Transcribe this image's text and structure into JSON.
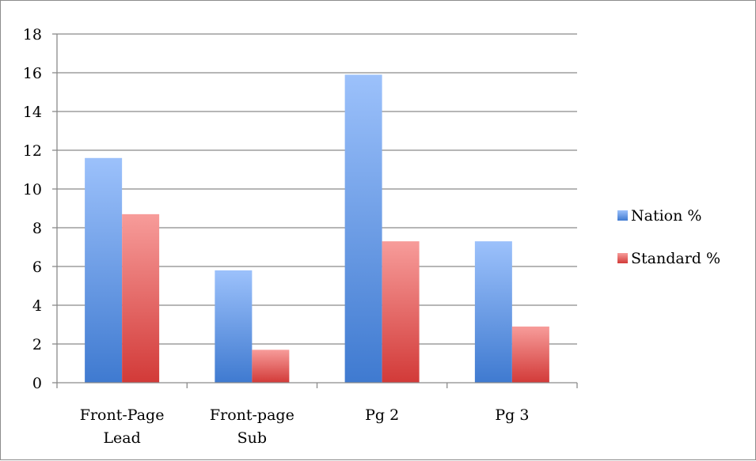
{
  "chart_data": {
    "type": "bar",
    "categories": [
      [
        "Front-Page",
        "Lead"
      ],
      [
        "Front-page",
        "Sub"
      ],
      [
        "Pg 2"
      ],
      [
        "Pg 3"
      ]
    ],
    "series": [
      {
        "name": "Nation %",
        "color": "#5b8fd8",
        "values": [
          11.6,
          5.8,
          15.9,
          7.3
        ]
      },
      {
        "name": "Standard %",
        "color": "#d94a48",
        "values": [
          8.7,
          1.7,
          7.3,
          2.9
        ]
      }
    ],
    "yticks": [
      0,
      2,
      4,
      6,
      8,
      10,
      12,
      14,
      16,
      18
    ],
    "ylim": [
      0,
      18
    ],
    "grid": true,
    "legend_position": "right"
  }
}
